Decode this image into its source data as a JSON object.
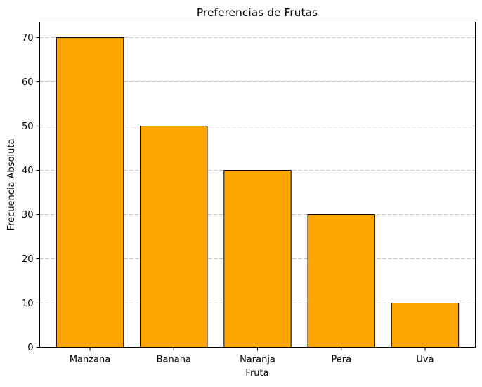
{
  "chart_data": {
    "type": "bar",
    "title": "Preferencias de Frutas",
    "xlabel": "Fruta",
    "ylabel": "Frecuencia Absoluta",
    "categories": [
      "Manzana",
      "Banana",
      "Naranja",
      "Pera",
      "Uva"
    ],
    "values": [
      70,
      50,
      40,
      30,
      10
    ],
    "ylim": [
      0,
      73.5
    ],
    "yticks": [
      0,
      10,
      20,
      30,
      40,
      50,
      60,
      70
    ],
    "grid": {
      "axis": "y",
      "style": "dashed"
    },
    "colors": {
      "bar_fill": "#FFA500",
      "bar_edge": "#000000",
      "grid": "#c4c4c4"
    }
  }
}
